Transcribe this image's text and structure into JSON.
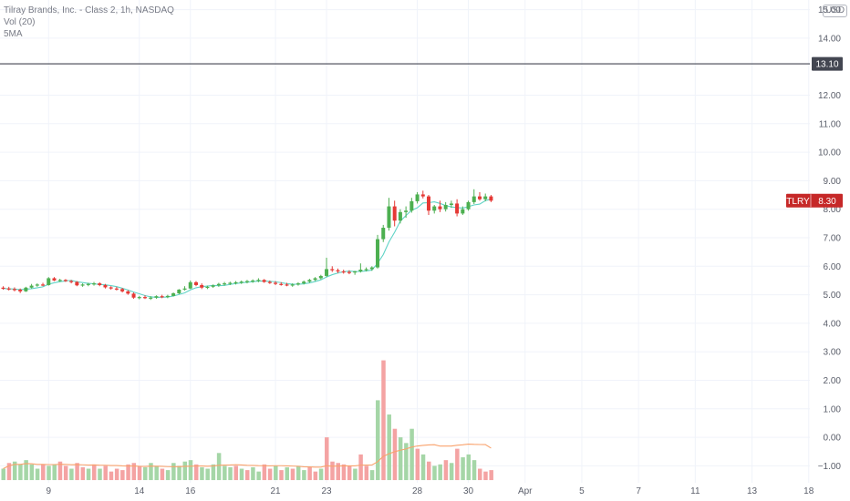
{
  "header": {
    "title": "Tilray Brands, Inc. - Class 2, 1h, NASDAQ",
    "indicator_vol": "Vol (20)",
    "indicator_ma": "5MA"
  },
  "currency": "USD",
  "colors": {
    "up": "#26a69a",
    "down": "#ef5350",
    "up_candle": "#4caf50",
    "down_candle": "#e53935",
    "vol_up": "#a5d6a7",
    "vol_down": "#f4a3a3",
    "ma": "#5fd3c6",
    "vol_ma": "#f9a26c",
    "hline": "#434651",
    "tag_dark": "#434651",
    "tag_red": "#c62828"
  },
  "chart_data": {
    "type": "candlestick",
    "price_axis": {
      "ylim": [
        -1.5,
        15.5
      ],
      "ticks": [
        "15.00",
        "14.00",
        "12.00",
        "11.00",
        "10.00",
        "9.00",
        "8.00",
        "7.00",
        "6.00",
        "5.00",
        "4.00",
        "3.00",
        "2.00",
        "1.00",
        "0.00",
        "−1.00"
      ],
      "tick_values": [
        15,
        14,
        12,
        11,
        10,
        9,
        8,
        7,
        6,
        5,
        4,
        3,
        2,
        1,
        0,
        -1
      ]
    },
    "time_axis": {
      "labels": [
        "9",
        "14",
        "16",
        "21",
        "23",
        "28",
        "30",
        "Apr",
        "5",
        "7",
        "11",
        "13",
        "18"
      ],
      "label_index": [
        8,
        24,
        33,
        48,
        57,
        73,
        82,
        92,
        102,
        112,
        122,
        132,
        142
      ]
    },
    "horizontal_line": {
      "value": 13.1,
      "label": "13.10"
    },
    "last_price": {
      "symbol": "TLRY",
      "value": 8.3,
      "label": "8.30"
    },
    "candles": [
      [
        5.25,
        5.3,
        5.18,
        5.22
      ],
      [
        5.22,
        5.28,
        5.15,
        5.2
      ],
      [
        5.2,
        5.26,
        5.12,
        5.18
      ],
      [
        5.18,
        5.22,
        5.06,
        5.12
      ],
      [
        5.12,
        5.28,
        5.1,
        5.25
      ],
      [
        5.25,
        5.38,
        5.22,
        5.32
      ],
      [
        5.32,
        5.4,
        5.28,
        5.36
      ],
      [
        5.36,
        5.42,
        5.3,
        5.34
      ],
      [
        5.34,
        5.62,
        5.32,
        5.58
      ],
      [
        5.58,
        5.62,
        5.48,
        5.5
      ],
      [
        5.5,
        5.56,
        5.45,
        5.52
      ],
      [
        5.52,
        5.55,
        5.45,
        5.48
      ],
      [
        5.48,
        5.52,
        5.4,
        5.45
      ],
      [
        5.45,
        5.48,
        5.3,
        5.33
      ],
      [
        5.33,
        5.4,
        5.28,
        5.36
      ],
      [
        5.36,
        5.42,
        5.3,
        5.38
      ],
      [
        5.38,
        5.45,
        5.32,
        5.4
      ],
      [
        5.4,
        5.44,
        5.3,
        5.34
      ],
      [
        5.34,
        5.38,
        5.22,
        5.26
      ],
      [
        5.26,
        5.3,
        5.18,
        5.22
      ],
      [
        5.22,
        5.28,
        5.15,
        5.2
      ],
      [
        5.2,
        5.24,
        5.08,
        5.12
      ],
      [
        5.12,
        5.16,
        5.0,
        5.04
      ],
      [
        5.04,
        5.08,
        4.86,
        4.9
      ],
      [
        4.9,
        4.96,
        4.84,
        4.92
      ],
      [
        4.92,
        4.98,
        4.85,
        4.88
      ],
      [
        4.88,
        4.95,
        4.82,
        4.9
      ],
      [
        4.9,
        4.98,
        4.86,
        4.95
      ],
      [
        4.95,
        5.0,
        4.88,
        4.92
      ],
      [
        4.92,
        5.0,
        4.88,
        4.96
      ],
      [
        4.96,
        5.08,
        4.94,
        5.05
      ],
      [
        5.05,
        5.2,
        5.02,
        5.18
      ],
      [
        5.18,
        5.3,
        5.15,
        5.22
      ],
      [
        5.22,
        5.5,
        5.2,
        5.44
      ],
      [
        5.44,
        5.48,
        5.3,
        5.34
      ],
      [
        5.34,
        5.4,
        5.2,
        5.25
      ],
      [
        5.25,
        5.32,
        5.2,
        5.28
      ],
      [
        5.28,
        5.36,
        5.24,
        5.33
      ],
      [
        5.33,
        5.42,
        5.28,
        5.38
      ],
      [
        5.38,
        5.45,
        5.32,
        5.4
      ],
      [
        5.4,
        5.46,
        5.34,
        5.42
      ],
      [
        5.42,
        5.48,
        5.36,
        5.44
      ],
      [
        5.44,
        5.5,
        5.38,
        5.46
      ],
      [
        5.46,
        5.52,
        5.4,
        5.48
      ],
      [
        5.48,
        5.54,
        5.42,
        5.5
      ],
      [
        5.5,
        5.58,
        5.44,
        5.52
      ],
      [
        5.52,
        5.55,
        5.42,
        5.45
      ],
      [
        5.45,
        5.5,
        5.38,
        5.42
      ],
      [
        5.42,
        5.48,
        5.34,
        5.38
      ],
      [
        5.38,
        5.44,
        5.32,
        5.36
      ],
      [
        5.36,
        5.42,
        5.3,
        5.34
      ],
      [
        5.34,
        5.4,
        5.28,
        5.36
      ],
      [
        5.36,
        5.44,
        5.32,
        5.4
      ],
      [
        5.4,
        5.5,
        5.36,
        5.46
      ],
      [
        5.46,
        5.56,
        5.42,
        5.52
      ],
      [
        5.52,
        5.62,
        5.48,
        5.58
      ],
      [
        5.58,
        5.7,
        5.54,
        5.66
      ],
      [
        5.66,
        6.3,
        5.62,
        5.9
      ],
      [
        5.9,
        6.0,
        5.8,
        5.86
      ],
      [
        5.86,
        5.92,
        5.76,
        5.82
      ],
      [
        5.82,
        5.88,
        5.74,
        5.8
      ],
      [
        5.8,
        5.86,
        5.72,
        5.78
      ],
      [
        5.78,
        5.84,
        5.7,
        5.82
      ],
      [
        5.82,
        6.1,
        5.78,
        5.88
      ],
      [
        5.88,
        5.96,
        5.82,
        5.9
      ],
      [
        5.9,
        6.0,
        5.84,
        5.96
      ],
      [
        5.96,
        7.1,
        5.92,
        6.95
      ],
      [
        6.95,
        7.45,
        6.85,
        7.35
      ],
      [
        7.35,
        8.4,
        7.25,
        8.1
      ],
      [
        8.1,
        8.3,
        7.4,
        7.6
      ],
      [
        7.6,
        8.0,
        7.5,
        7.9
      ],
      [
        7.9,
        8.1,
        7.7,
        7.95
      ],
      [
        7.95,
        8.4,
        7.88,
        8.28
      ],
      [
        8.28,
        8.6,
        8.2,
        8.52
      ],
      [
        8.52,
        8.65,
        8.38,
        8.45
      ],
      [
        8.45,
        8.5,
        7.8,
        7.95
      ],
      [
        7.95,
        8.15,
        7.85,
        8.1
      ],
      [
        8.1,
        8.3,
        7.9,
        8.0
      ],
      [
        8.0,
        8.25,
        7.92,
        8.15
      ],
      [
        8.15,
        8.3,
        8.05,
        8.2
      ],
      [
        8.2,
        8.35,
        7.75,
        7.85
      ],
      [
        7.85,
        8.1,
        7.8,
        8.0
      ],
      [
        8.0,
        8.3,
        7.95,
        8.25
      ],
      [
        8.25,
        8.7,
        8.18,
        8.45
      ],
      [
        8.45,
        8.6,
        8.3,
        8.35
      ],
      [
        8.35,
        8.55,
        8.28,
        8.45
      ],
      [
        8.45,
        8.5,
        8.25,
        8.3
      ]
    ],
    "volume": [
      [
        -1.1,
        1
      ],
      [
        -0.9,
        0
      ],
      [
        -0.85,
        1
      ],
      [
        -0.95,
        1
      ],
      [
        -0.8,
        1
      ],
      [
        -0.95,
        1
      ],
      [
        -1.1,
        1
      ],
      [
        -0.95,
        0
      ],
      [
        -1.0,
        1
      ],
      [
        -0.95,
        1
      ],
      [
        -0.85,
        0
      ],
      [
        -1.0,
        0
      ],
      [
        -1.1,
        1
      ],
      [
        -0.9,
        0
      ],
      [
        -1.05,
        0
      ],
      [
        -1.1,
        1
      ],
      [
        -0.95,
        0
      ],
      [
        -1.1,
        1
      ],
      [
        -1.0,
        0
      ],
      [
        -1.2,
        0
      ],
      [
        -1.1,
        0
      ],
      [
        -1.15,
        0
      ],
      [
        -0.95,
        0
      ],
      [
        -0.9,
        0
      ],
      [
        -1.0,
        0
      ],
      [
        -1.05,
        1
      ],
      [
        -0.9,
        1
      ],
      [
        -1.0,
        1
      ],
      [
        -1.1,
        0
      ],
      [
        -1.15,
        1
      ],
      [
        -0.9,
        1
      ],
      [
        -1.0,
        1
      ],
      [
        -0.85,
        1
      ],
      [
        -0.8,
        1
      ],
      [
        -0.95,
        0
      ],
      [
        -1.05,
        1
      ],
      [
        -1.1,
        1
      ],
      [
        -0.95,
        1
      ],
      [
        -0.55,
        1
      ],
      [
        -1.0,
        1
      ],
      [
        -1.05,
        1
      ],
      [
        -1.0,
        0
      ],
      [
        -1.1,
        1
      ],
      [
        -1.15,
        0
      ],
      [
        -1.05,
        1
      ],
      [
        -1.2,
        1
      ],
      [
        -0.95,
        0
      ],
      [
        -1.1,
        0
      ],
      [
        -1.0,
        1
      ],
      [
        -1.15,
        0
      ],
      [
        -1.05,
        1
      ],
      [
        -1.1,
        0
      ],
      [
        -1.0,
        1
      ],
      [
        -1.15,
        1
      ],
      [
        -1.05,
        0
      ],
      [
        -1.2,
        0
      ],
      [
        -1.1,
        1
      ],
      [
        0.0,
        0
      ],
      [
        -0.85,
        0
      ],
      [
        -0.9,
        0
      ],
      [
        -0.95,
        0
      ],
      [
        -1.0,
        0
      ],
      [
        -1.1,
        1
      ],
      [
        -0.6,
        0
      ],
      [
        -1.0,
        0
      ],
      [
        -1.15,
        1
      ],
      [
        1.3,
        1
      ],
      [
        2.7,
        0
      ],
      [
        0.8,
        1
      ],
      [
        0.3,
        0
      ],
      [
        0.0,
        1
      ],
      [
        -0.2,
        1
      ],
      [
        0.3,
        1
      ],
      [
        -0.4,
        0
      ],
      [
        -0.6,
        1
      ],
      [
        -0.85,
        0
      ],
      [
        -1.0,
        1
      ],
      [
        -0.95,
        1
      ],
      [
        -0.8,
        0
      ],
      [
        -0.9,
        1
      ],
      [
        -0.4,
        0
      ],
      [
        -0.7,
        1
      ],
      [
        -0.6,
        1
      ],
      [
        -0.8,
        1
      ],
      [
        -1.1,
        0
      ],
      [
        -1.2,
        0
      ],
      [
        -1.15,
        0
      ]
    ],
    "vol_ma_range": [
      63,
      86
    ]
  }
}
